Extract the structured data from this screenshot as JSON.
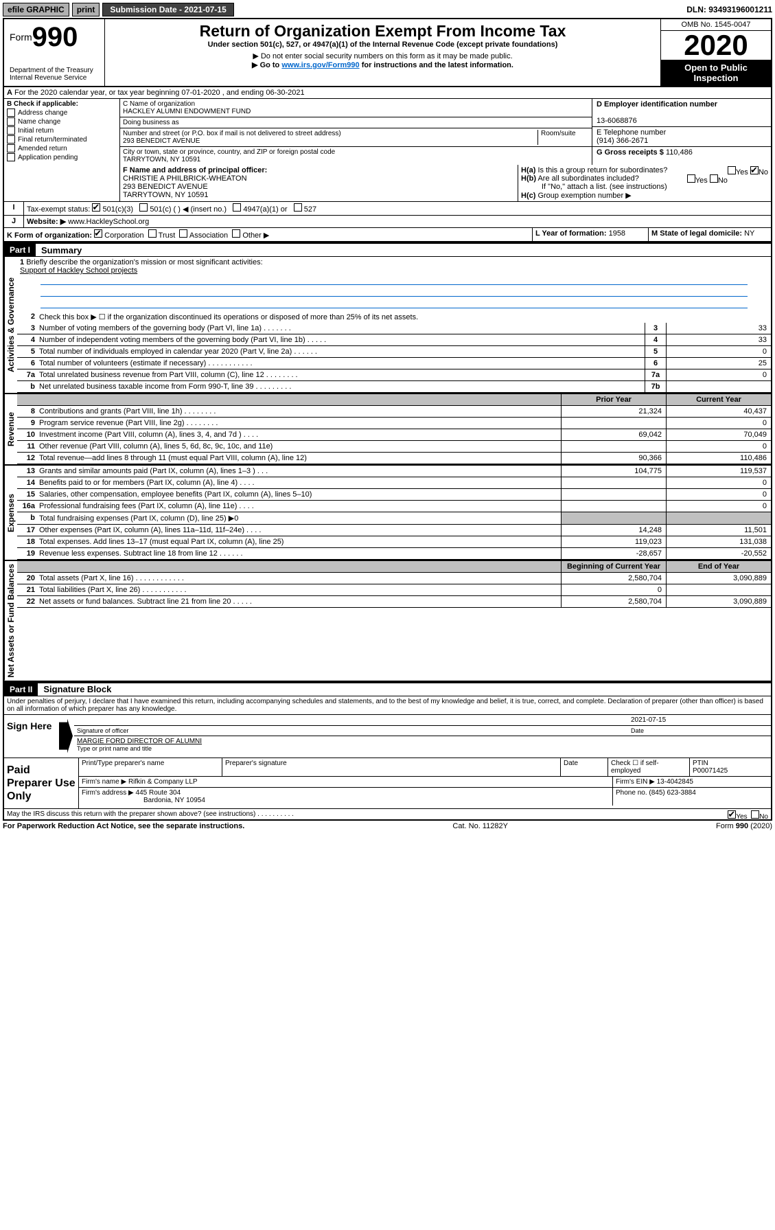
{
  "top_bar": {
    "efile": "efile GRAPHIC",
    "print": "print",
    "sub_label": "Submission Date - ",
    "sub_date": "2021-07-15",
    "dln": "DLN: 93493196001211"
  },
  "header": {
    "form_label": "Form",
    "form_num": "990",
    "dept": "Department of the Treasury",
    "irs": "Internal Revenue Service",
    "title": "Return of Organization Exempt From Income Tax",
    "subtitle": "Under section 501(c), 527, or 4947(a)(1) of the Internal Revenue Code (except private foundations)",
    "arrow1": "▶ Do not enter social security numbers on this form as it may be made public.",
    "arrow2_pre": "▶ Go to ",
    "arrow2_link": "www.irs.gov/Form990",
    "arrow2_post": " for instructions and the latest information.",
    "omb": "OMB No. 1545-0047",
    "year": "2020",
    "open": "Open to Public Inspection"
  },
  "section_a": "For the 2020 calendar year, or tax year beginning 07-01-2020    , and ending 06-30-2021",
  "check_b": {
    "label": "B Check if applicable:",
    "opts": [
      "Address change",
      "Name change",
      "Initial return",
      "Final return/terminated",
      "Amended return",
      "Application pending"
    ]
  },
  "org": {
    "c_label": "C Name of organization",
    "name": "HACKLEY ALUMNI ENDOWMENT FUND",
    "dba": "Doing business as",
    "addr_label": "Number and street (or P.O. box if mail is not delivered to street address)",
    "room": "Room/suite",
    "addr": "293 BENEDICT AVENUE",
    "city_label": "City or town, state or province, country, and ZIP or foreign postal code",
    "city": "TARRYTOWN, NY  10591"
  },
  "d": {
    "label": "D Employer identification number",
    "ein": "13-6068876"
  },
  "e": {
    "label": "E Telephone number",
    "phone": "(914) 366-2671"
  },
  "g": {
    "label": "G Gross receipts $",
    "amt": "110,486"
  },
  "f": {
    "label": "F Name and address of principal officer:",
    "name": "CHRISTIE A PHILBRICK-WHEATON",
    "addr": "293 BENEDICT AVENUE",
    "city": "TARRYTOWN, NY  10591"
  },
  "h": {
    "a": "Is this a group return for subordinates?",
    "b": "Are all subordinates included?",
    "note": "If \"No,\" attach a list. (see instructions)",
    "c": "Group exemption number ▶"
  },
  "tax_exempt": {
    "label": "Tax-exempt status:",
    "o1": "501(c)(3)",
    "o2": "501(c) (   ) ◀ (insert no.)",
    "o3": "4947(a)(1) or",
    "o4": "527"
  },
  "website": {
    "label": "Website: ▶",
    "url": "www.HackleySchool.org"
  },
  "k": {
    "label": "K Form of organization:",
    "o1": "Corporation",
    "o2": "Trust",
    "o3": "Association",
    "o4": "Other ▶"
  },
  "l": {
    "label": "L Year of formation:",
    "val": "1958"
  },
  "m": {
    "label": "M State of legal domicile:",
    "val": "NY"
  },
  "part1": {
    "tag": "Part I",
    "title": "Summary",
    "line1": "Briefly describe the organization's mission or most significant activities:",
    "mission": "Support of Hackley School projects",
    "line2": "Check this box ▶ ☐  if the organization discontinued its operations or disposed of more than 25% of its net assets.",
    "vl_gov": "Activities & Governance",
    "vl_rev": "Revenue",
    "vl_exp": "Expenses",
    "vl_net": "Net Assets or Fund Balances",
    "rows": [
      {
        "n": "3",
        "t": "Number of voting members of the governing body (Part VI, line 1a)   .    .    .    .    .    .    .",
        "b": "3",
        "v": "33"
      },
      {
        "n": "4",
        "t": "Number of independent voting members of the governing body (Part VI, line 1b)   .    .    .    .    .",
        "b": "4",
        "v": "33"
      },
      {
        "n": "5",
        "t": "Total number of individuals employed in calendar year 2020 (Part V, line 2a)   .    .    .    .    .    .",
        "b": "5",
        "v": "0"
      },
      {
        "n": "6",
        "t": "Total number of volunteers (estimate if necessary)   .    .    .    .    .    .    .    .    .    .    .",
        "b": "6",
        "v": "25"
      },
      {
        "n": "7a",
        "t": "Total unrelated business revenue from Part VIII, column (C), line 12   .    .    .    .    .    .    .    .",
        "b": "7a",
        "v": "0"
      },
      {
        "n": "b",
        "t": "Net unrelated business taxable income from Form 990-T, line 39   .    .    .    .    .    .    .    .    .",
        "b": "7b",
        "v": ""
      }
    ],
    "col_prior": "Prior Year",
    "col_curr": "Current Year",
    "rev_rows": [
      {
        "n": "8",
        "t": "Contributions and grants (Part VIII, line 1h)   .    .    .    .    .    .    .    .",
        "p": "21,324",
        "c": "40,437"
      },
      {
        "n": "9",
        "t": "Program service revenue (Part VIII, line 2g)   .    .    .    .    .    .    .    .",
        "p": "",
        "c": "0"
      },
      {
        "n": "10",
        "t": "Investment income (Part VIII, column (A), lines 3, 4, and 7d )   .    .    .    .",
        "p": "69,042",
        "c": "70,049"
      },
      {
        "n": "11",
        "t": "Other revenue (Part VIII, column (A), lines 5, 6d, 8c, 9c, 10c, and 11e)",
        "p": "",
        "c": "0"
      },
      {
        "n": "12",
        "t": "Total revenue—add lines 8 through 11 (must equal Part VIII, column (A), line 12)",
        "p": "90,366",
        "c": "110,486"
      }
    ],
    "exp_rows": [
      {
        "n": "13",
        "t": "Grants and similar amounts paid (Part IX, column (A), lines 1–3 )   .    .    .",
        "p": "104,775",
        "c": "119,537"
      },
      {
        "n": "14",
        "t": "Benefits paid to or for members (Part IX, column (A), line 4)   .    .    .    .",
        "p": "",
        "c": "0"
      },
      {
        "n": "15",
        "t": "Salaries, other compensation, employee benefits (Part IX, column (A), lines 5–10)",
        "p": "",
        "c": "0"
      },
      {
        "n": "16a",
        "t": "Professional fundraising fees (Part IX, column (A), line 11e)   .    .    .    .",
        "p": "",
        "c": "0"
      },
      {
        "n": "b",
        "t": "Total fundraising expenses (Part IX, column (D), line 25) ▶0",
        "p": "",
        "c": ""
      },
      {
        "n": "17",
        "t": "Other expenses (Part IX, column (A), lines 11a–11d, 11f–24e)   .    .    .    .",
        "p": "14,248",
        "c": "11,501"
      },
      {
        "n": "18",
        "t": "Total expenses. Add lines 13–17 (must equal Part IX, column (A), line 25)",
        "p": "119,023",
        "c": "131,038"
      },
      {
        "n": "19",
        "t": "Revenue less expenses. Subtract line 18 from line 12   .    .    .    .    .    .",
        "p": "-28,657",
        "c": "-20,552"
      }
    ],
    "col_begin": "Beginning of Current Year",
    "col_end": "End of Year",
    "net_rows": [
      {
        "n": "20",
        "t": "Total assets (Part X, line 16)   .    .    .    .    .    .    .    .    .    .    .    .",
        "p": "2,580,704",
        "c": "3,090,889"
      },
      {
        "n": "21",
        "t": "Total liabilities (Part X, line 26)   .    .    .    .    .    .    .    .    .    .    .",
        "p": "0",
        "c": ""
      },
      {
        "n": "22",
        "t": "Net assets or fund balances. Subtract line 21 from line 20   .    .    .    .    .",
        "p": "2,580,704",
        "c": "3,090,889"
      }
    ]
  },
  "part2": {
    "tag": "Part II",
    "title": "Signature Block",
    "decl": "Under penalties of perjury, I declare that I have examined this return, including accompanying schedules and statements, and to the best of my knowledge and belief, it is true, correct, and complete. Declaration of preparer (other than officer) is based on all information of which preparer has any knowledge.",
    "sign_here": "Sign Here",
    "sig_officer": "Signature of officer",
    "sig_date": "2021-07-15",
    "date_label": "Date",
    "name_title": "MARGIE FORD  DIRECTOR OF ALUMNI",
    "type_name": "Type or print name and title",
    "paid": "Paid Preparer Use Only",
    "prep_name_label": "Print/Type preparer's name",
    "prep_sig_label": "Preparer's signature",
    "prep_date": "Date",
    "check_self": "Check ☐ if self-employed",
    "ptin_label": "PTIN",
    "ptin": "P00071425",
    "firm_name_label": "Firm's name    ▶",
    "firm_name": "Rifkin & Company LLP",
    "firm_ein_label": "Firm's EIN ▶",
    "firm_ein": "13-4042845",
    "firm_addr_label": "Firm's address ▶",
    "firm_addr1": "445 Route 304",
    "firm_addr2": "Bardonia, NY  10954",
    "phone_label": "Phone no.",
    "phone": "(845) 623-3884",
    "discuss": "May the IRS discuss this return with the preparer shown above? (see instructions)   .    .    .    .    .    .    .    .    .    ."
  },
  "footer": {
    "left": "For Paperwork Reduction Act Notice, see the separate instructions.",
    "mid": "Cat. No. 11282Y",
    "right": "Form 990 (2020)"
  }
}
